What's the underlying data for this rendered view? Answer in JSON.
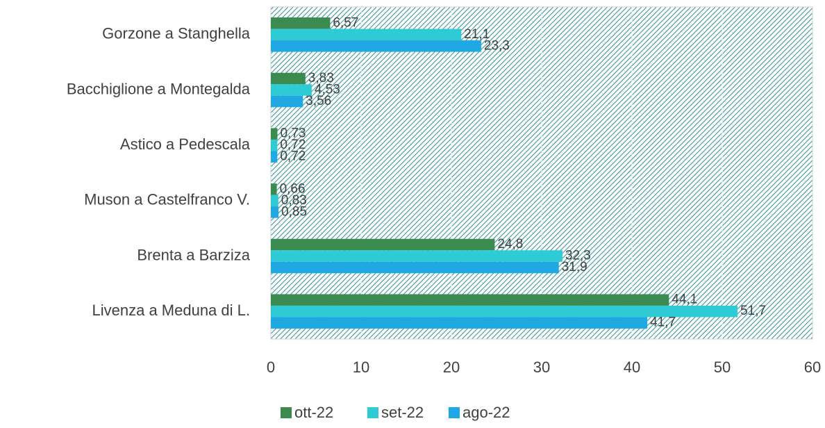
{
  "chart_data": {
    "type": "bar",
    "orientation": "horizontal",
    "categories": [
      "Gorzone a Stanghella",
      "Bacchiglione a Montegalda",
      "Astico a Pedescala",
      "Muson a Castelfranco V.",
      "Brenta a Barziza",
      "Livenza a Meduna di L."
    ],
    "series": [
      {
        "name": "ott-22",
        "color": "#3b8a50",
        "values": [
          6.57,
          3.83,
          0.73,
          0.66,
          24.8,
          44.1
        ],
        "value_labels": [
          "6,57",
          "3,83",
          "0,73",
          "0,66",
          "24,8",
          "44,1"
        ]
      },
      {
        "name": "set-22",
        "color": "#2fcbd5",
        "values": [
          21.1,
          4.53,
          0.72,
          0.83,
          32.3,
          51.7
        ],
        "value_labels": [
          "21,1",
          "4,53",
          "0,72",
          "0,83",
          "32,3",
          "51,7"
        ]
      },
      {
        "name": "ago-22",
        "color": "#1fa8e2",
        "values": [
          23.3,
          3.56,
          0.72,
          0.85,
          31.9,
          41.7
        ],
        "value_labels": [
          "23,3",
          "3,56",
          "0,72",
          "0,85",
          "31,9",
          "41,7"
        ]
      }
    ],
    "xlim": [
      0,
      60
    ],
    "xticks": [
      0,
      10,
      20,
      30,
      40,
      50,
      60
    ],
    "grid": true,
    "legend": "bottom"
  }
}
